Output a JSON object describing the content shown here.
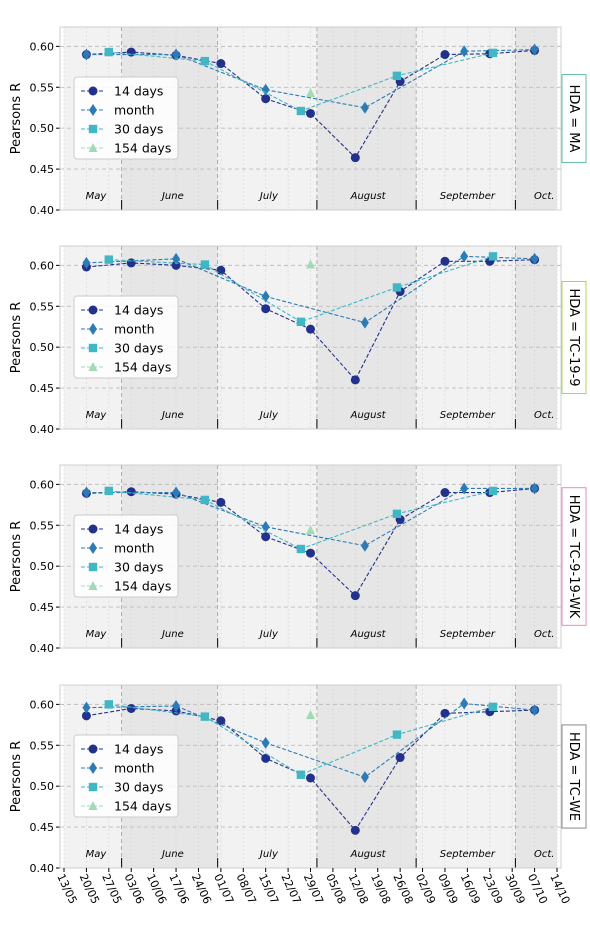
{
  "colors": {
    "14 days": "#22318b",
    "month": "#2c7bb6",
    "30 days": "#41b6c4",
    "154 days": "#a1dab4",
    "band_light": "#f2f2f2",
    "band_dark": "#e6e6e6",
    "grid": "#bdbdbd",
    "hda_border": [
      "#66c2a5",
      "#a6d854",
      "#e78ac3",
      "#888888"
    ]
  },
  "chart_data": {
    "type": "line",
    "ylabel": "Pearsons R",
    "ylim": [
      0.4,
      0.62
    ],
    "yticks": [
      "0.40",
      "0.45",
      "0.50",
      "0.55",
      "0.60"
    ],
    "x_dates": [
      "13/05",
      "20/05",
      "27/05",
      "03/06",
      "10/06",
      "17/06",
      "24/06",
      "01/07",
      "08/07",
      "15/07",
      "22/07",
      "29/07",
      "05/08",
      "12/08",
      "19/08",
      "26/08",
      "02/09",
      "09/09",
      "16/09",
      "23/09",
      "30/09",
      "07/10",
      "14/10"
    ],
    "months": [
      "May",
      "June",
      "July",
      "August",
      "September",
      "Oct."
    ],
    "legend": [
      "14 days",
      "month",
      "30 days",
      "154 days"
    ],
    "legend_position": "center-left",
    "grid": true,
    "panels": [
      {
        "hda": "HDA = MA",
        "series": [
          {
            "name": "14 days",
            "x": [
              "20/05",
              "03/06",
              "17/06",
              "01/07",
              "15/07",
              "29/07",
              "12/08",
              "26/08",
              "09/09",
              "23/09",
              "07/10"
            ],
            "y": [
              0.59,
              0.593,
              0.589,
              0.579,
              0.536,
              0.518,
              0.464,
              0.557,
              0.59,
              0.591,
              0.595
            ]
          },
          {
            "name": "month",
            "x": [
              "20/05",
              "17/06",
              "15/07",
              "15/08",
              "15/09",
              "07/10"
            ],
            "y": [
              0.59,
              0.59,
              0.547,
              0.525,
              0.594,
              0.596
            ]
          },
          {
            "name": "30 days",
            "x": [
              "27/05",
              "26/06",
              "26/07",
              "25/08",
              "24/09"
            ],
            "y": [
              0.593,
              0.582,
              0.521,
              0.564,
              0.592
            ]
          },
          {
            "name": "154 days",
            "x": [
              "29/07"
            ],
            "y": [
              0.543
            ]
          }
        ]
      },
      {
        "hda": "HDA = TC-19-9",
        "series": [
          {
            "name": "14 days",
            "x": [
              "20/05",
              "03/06",
              "17/06",
              "01/07",
              "15/07",
              "29/07",
              "12/08",
              "26/08",
              "09/09",
              "23/09",
              "07/10"
            ],
            "y": [
              0.598,
              0.603,
              0.6,
              0.594,
              0.547,
              0.522,
              0.46,
              0.568,
              0.605,
              0.605,
              0.607
            ]
          },
          {
            "name": "month",
            "x": [
              "20/05",
              "17/06",
              "15/07",
              "15/08",
              "15/09",
              "07/10"
            ],
            "y": [
              0.603,
              0.608,
              0.562,
              0.53,
              0.611,
              0.608
            ]
          },
          {
            "name": "30 days",
            "x": [
              "27/05",
              "26/06",
              "26/07",
              "25/08",
              "24/09"
            ],
            "y": [
              0.607,
              0.601,
              0.531,
              0.573,
              0.611
            ]
          },
          {
            "name": "154 days",
            "x": [
              "29/07"
            ],
            "y": [
              0.601
            ]
          }
        ]
      },
      {
        "hda": "HDA = TC-9-19-WK",
        "series": [
          {
            "name": "14 days",
            "x": [
              "20/05",
              "03/06",
              "17/06",
              "01/07",
              "15/07",
              "29/07",
              "12/08",
              "26/08",
              "09/09",
              "23/09",
              "07/10"
            ],
            "y": [
              0.589,
              0.591,
              0.588,
              0.578,
              0.536,
              0.516,
              0.464,
              0.557,
              0.59,
              0.59,
              0.595
            ]
          },
          {
            "name": "month",
            "x": [
              "20/05",
              "17/06",
              "15/07",
              "15/08",
              "15/09",
              "07/10"
            ],
            "y": [
              0.59,
              0.59,
              0.548,
              0.525,
              0.595,
              0.595
            ]
          },
          {
            "name": "30 days",
            "x": [
              "27/05",
              "26/06",
              "26/07",
              "25/08",
              "24/09"
            ],
            "y": [
              0.592,
              0.581,
              0.521,
              0.564,
              0.592
            ]
          },
          {
            "name": "154 days",
            "x": [
              "29/07"
            ],
            "y": [
              0.544
            ]
          }
        ]
      },
      {
        "hda": "HDA = TC-WE",
        "series": [
          {
            "name": "14 days",
            "x": [
              "20/05",
              "03/06",
              "17/06",
              "01/07",
              "15/07",
              "29/07",
              "12/08",
              "26/08",
              "09/09",
              "23/09",
              "07/10"
            ],
            "y": [
              0.586,
              0.595,
              0.592,
              0.58,
              0.534,
              0.51,
              0.446,
              0.535,
              0.589,
              0.591,
              0.593
            ]
          },
          {
            "name": "month",
            "x": [
              "20/05",
              "17/06",
              "15/07",
              "15/08",
              "15/09",
              "07/10"
            ],
            "y": [
              0.596,
              0.598,
              0.553,
              0.511,
              0.601,
              0.593
            ]
          },
          {
            "name": "30 days",
            "x": [
              "27/05",
              "26/06",
              "26/07",
              "25/08",
              "24/09"
            ],
            "y": [
              0.6,
              0.585,
              0.514,
              0.563,
              0.597
            ]
          },
          {
            "name": "154 days",
            "x": [
              "29/07"
            ],
            "y": [
              0.587
            ]
          }
        ]
      }
    ]
  }
}
